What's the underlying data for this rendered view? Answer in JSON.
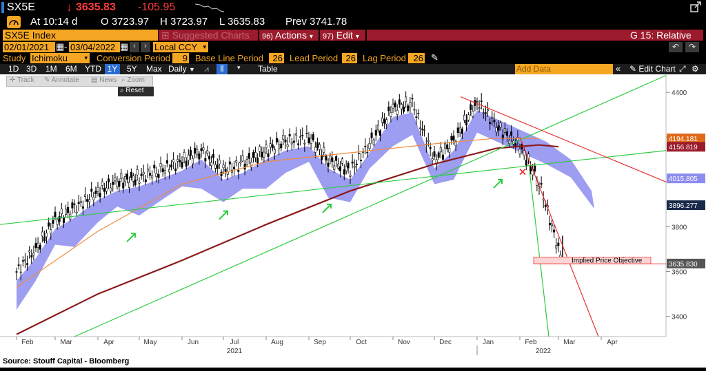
{
  "quote": {
    "ticker": "SX5E",
    "last": "3635.83",
    "change": "-105.95",
    "time_label": "At 10:14 d",
    "open": "O 3723.97",
    "high": "H 3723.97",
    "low": "L 3635.83",
    "prev": "Prev 3741.78"
  },
  "menubar": {
    "security": "SX5E Index",
    "suggested": "Suggested Charts",
    "actions": "Actions",
    "actions_num": "96)",
    "edit": "Edit",
    "edit_num": "97)",
    "g_label": "G 15: Relative"
  },
  "dates": {
    "start": "02/01/2021",
    "end": "03/04/2022",
    "currency": "Local CCY"
  },
  "study": {
    "label": "Study",
    "name": "Ichimoku",
    "conv_label": "Conversion Period",
    "conv": "9",
    "base_label": "Base Line Period",
    "base": "26",
    "lead_label": "Lead Period",
    "lead": "26",
    "lag_label": "Lag Period",
    "lag": "26"
  },
  "toolbar": {
    "periods": [
      "1D",
      "3D",
      "1M",
      "6M",
      "YTD",
      "1Y",
      "5Y",
      "Max"
    ],
    "active_period": "1Y",
    "frequency": "Daily",
    "table": "Table",
    "add_data_placeholder": "Add Data",
    "edit_chart": "Edit Chart"
  },
  "tools": {
    "track": "Track",
    "annotate": "Annotate",
    "news": "News",
    "zoom": "Zoom",
    "reset": "Reset"
  },
  "source": "Source:  Stouff Capital - Bloomberg",
  "colors": {
    "price": "#ffffff",
    "ma_long": "#8b1a1a",
    "ma_short": "#f08a3c",
    "cloud": "#8c8cf0",
    "trend_green": "#2ecc40",
    "trend_red": "#e8332f",
    "orange": "#f5a623"
  },
  "chart_data": {
    "type": "line",
    "title": "",
    "ylim": [
      3310,
      4480
    ],
    "y_ticks": [
      3400,
      3600,
      3800,
      4000,
      4200,
      4400
    ],
    "y_tick_labels": [
      "3400",
      "3600",
      "3800",
      "",
      "",
      "4400"
    ],
    "x_axis_months": [
      "Feb",
      "Mar",
      "Apr",
      "May",
      "Jun",
      "Jul",
      "Aug",
      "Sep",
      "Oct",
      "Nov",
      "Dec",
      "Jan",
      "Feb",
      "Mar",
      "Apr"
    ],
    "x_axis_years": [
      "2021",
      "2022"
    ],
    "right_labels": [
      {
        "value": 4194.181,
        "text": "4194.181",
        "color": "#e06a1a"
      },
      {
        "value": 4156.819,
        "text": "4156.819",
        "color": "#9b1b2c"
      },
      {
        "value": 4015.805,
        "text": "4015.805",
        "color": "#8c8cf0"
      },
      {
        "value": 3896.277,
        "text": "3896.277",
        "color": "#1a2a4a"
      },
      {
        "value": 3635.83,
        "text": "3635.830",
        "color": "#555555"
      }
    ],
    "annotation": "Implied Price Objective",
    "series": [
      {
        "name": "SX5E Index",
        "x": [
          "2021-02-01",
          "2021-02-15",
          "2021-03-01",
          "2021-03-15",
          "2021-04-01",
          "2021-04-15",
          "2021-05-01",
          "2021-05-15",
          "2021-06-01",
          "2021-06-15",
          "2021-07-01",
          "2021-07-15",
          "2021-08-01",
          "2021-08-15",
          "2021-09-01",
          "2021-09-15",
          "2021-10-01",
          "2021-10-15",
          "2021-11-01",
          "2021-11-15",
          "2021-12-01",
          "2021-12-15",
          "2022-01-01",
          "2022-01-15",
          "2022-02-01",
          "2022-02-15",
          "2022-03-04"
        ],
        "y": [
          3600,
          3700,
          3830,
          3880,
          3960,
          4000,
          4020,
          4050,
          4090,
          4140,
          4050,
          4080,
          4140,
          4180,
          4200,
          4100,
          4050,
          4170,
          4330,
          4350,
          4100,
          4180,
          4360,
          4250,
          4160,
          4000,
          3636
        ]
      },
      {
        "x": [
          "2021-02-01",
          "2021-04-01",
          "2021-06-01",
          "2021-08-01",
          "2021-10-01",
          "2021-12-01",
          "2022-01-15",
          "2022-02-15",
          "2022-03-01"
        ],
        "y": [
          3320,
          3500,
          3650,
          3810,
          3960,
          4080,
          4150,
          4165,
          4157
        ]
      },
      {
        "x": [
          "2021-02-01",
          "2021-04-01",
          "2021-06-01",
          "2021-08-01",
          "2021-10-01",
          "2021-12-01",
          "2022-01-15",
          "2022-02-15"
        ],
        "y": [
          3530,
          3780,
          3990,
          4090,
          4130,
          4170,
          4195,
          4194
        ]
      }
    ]
  }
}
